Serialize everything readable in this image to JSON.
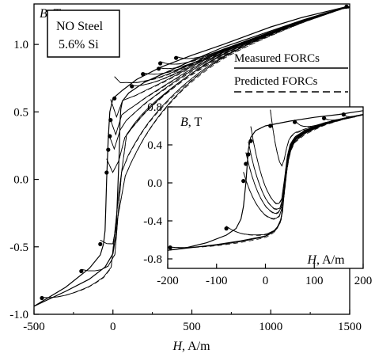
{
  "chart_data": [
    {
      "type": "line",
      "xlabel": "H, A/m",
      "ylabel": "B, T",
      "xlim": [
        -500,
        1500
      ],
      "ylim": [
        -1.0,
        1.3
      ],
      "xticks": [
        "-500",
        "0",
        "500",
        "1000",
        "1500"
      ],
      "yticks": [
        "-1.0",
        "-0.5",
        "0.0",
        "0.5",
        "1.0"
      ],
      "annotation": [
        "NO Steel",
        "5.6% Si"
      ],
      "legend": [
        "Measured FORCs",
        "Predicted FORCs"
      ],
      "reversal_points": [
        {
          "x": -450,
          "y": -0.88
        },
        {
          "x": -200,
          "y": -0.68
        },
        {
          "x": -80,
          "y": -0.48
        },
        {
          "x": -40,
          "y": 0.05
        },
        {
          "x": -30,
          "y": 0.22
        },
        {
          "x": -20,
          "y": 0.32
        },
        {
          "x": -15,
          "y": 0.44
        },
        {
          "x": 10,
          "y": 0.6
        },
        {
          "x": 120,
          "y": 0.69
        },
        {
          "x": 190,
          "y": 0.78
        },
        {
          "x": 290,
          "y": 0.82
        },
        {
          "x": 300,
          "y": 0.86
        },
        {
          "x": 400,
          "y": 0.9
        },
        {
          "x": 1480,
          "y": 1.28
        }
      ],
      "descending_branch": {
        "x": [
          1480,
          1200,
          1000,
          700,
          500,
          300,
          150,
          60,
          0,
          -20,
          -30,
          -40,
          -45,
          -50,
          -60,
          -80,
          -150,
          -300,
          -500
        ],
        "y": [
          1.28,
          1.2,
          1.13,
          1.0,
          0.92,
          0.83,
          0.74,
          0.66,
          0.6,
          0.5,
          0.3,
          0.0,
          -0.2,
          -0.38,
          -0.48,
          -0.56,
          -0.66,
          -0.8,
          -0.94
        ]
      },
      "ascending_branch": {
        "x": [
          -500,
          -300,
          -150,
          -50,
          0,
          20,
          30,
          40,
          45,
          50,
          60,
          100,
          200,
          350,
          500,
          700,
          1000,
          1200,
          1480
        ],
        "y": [
          -0.94,
          -0.83,
          -0.74,
          -0.65,
          -0.55,
          -0.4,
          -0.1,
          0.2,
          0.42,
          0.52,
          0.58,
          0.64,
          0.72,
          0.8,
          0.88,
          0.98,
          1.1,
          1.18,
          1.28
        ]
      }
    },
    {
      "type": "line",
      "xlabel": "H, A/m",
      "ylabel": "B, T",
      "xlim": [
        -200,
        200
      ],
      "ylim": [
        -0.9,
        0.8
      ],
      "xticks": [
        "-200",
        "-100",
        "0",
        "100",
        "200"
      ],
      "yticks": [
        "0.8",
        "0.4",
        "0.0",
        "-0.4",
        "-0.8"
      ],
      "reversal_points": [
        {
          "x": -195,
          "y": -0.68
        },
        {
          "x": -80,
          "y": -0.48
        },
        {
          "x": -45,
          "y": 0.02
        },
        {
          "x": -40,
          "y": 0.2
        },
        {
          "x": -35,
          "y": 0.3
        },
        {
          "x": -30,
          "y": 0.44
        },
        {
          "x": 10,
          "y": 0.6
        },
        {
          "x": 60,
          "y": 0.64
        },
        {
          "x": 120,
          "y": 0.68
        },
        {
          "x": 160,
          "y": 0.72
        }
      ],
      "descending_branch": {
        "x": [
          200,
          150,
          100,
          50,
          0,
          -20,
          -30,
          -35,
          -40,
          -45,
          -50,
          -60,
          -80,
          -120,
          -160,
          -200
        ],
        "y": [
          0.76,
          0.72,
          0.69,
          0.65,
          0.6,
          0.55,
          0.48,
          0.35,
          0.0,
          -0.25,
          -0.38,
          -0.48,
          -0.55,
          -0.63,
          -0.68,
          -0.71
        ]
      },
      "ascending_branch": {
        "x": [
          -200,
          -150,
          -100,
          -50,
          0,
          20,
          30,
          35,
          40,
          45,
          50,
          60,
          80,
          120,
          160,
          200
        ],
        "y": [
          -0.71,
          -0.68,
          -0.65,
          -0.61,
          -0.56,
          -0.5,
          -0.42,
          -0.3,
          0.0,
          0.25,
          0.38,
          0.48,
          0.55,
          0.63,
          0.68,
          0.72
        ]
      }
    }
  ]
}
